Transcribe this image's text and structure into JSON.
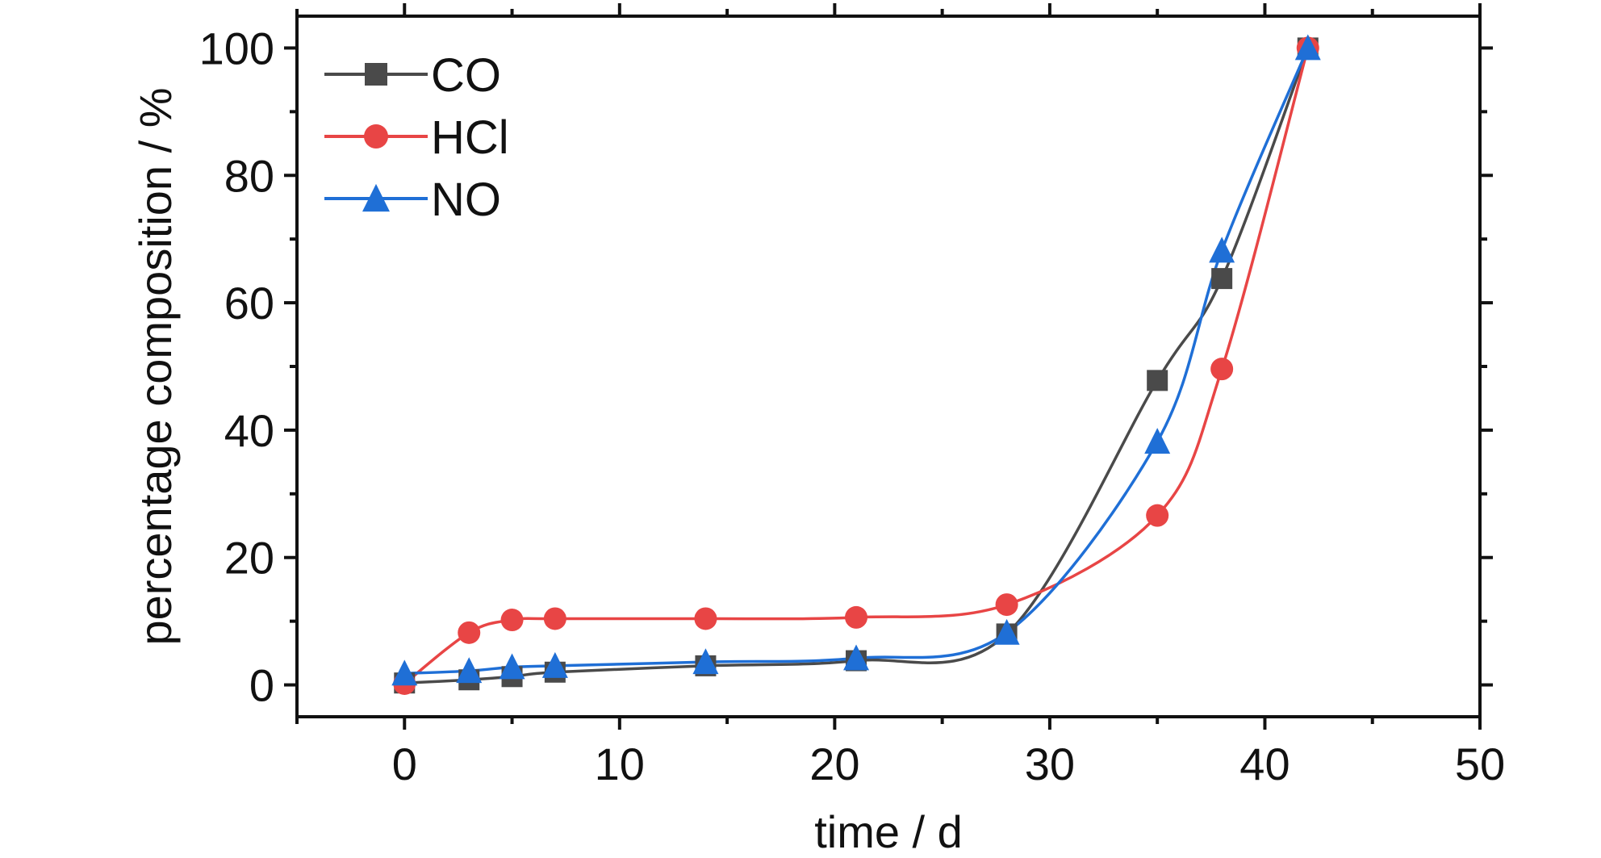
{
  "chart_data": {
    "type": "line",
    "xlabel": "time / d",
    "ylabel": "percentage composition / %",
    "xlim": [
      -5,
      50
    ],
    "ylim": [
      -5,
      105
    ],
    "xticks": [
      0,
      10,
      20,
      30,
      40,
      50
    ],
    "yticks": [
      0,
      20,
      40,
      60,
      80,
      100
    ],
    "grid": false,
    "legend_position": "top-left",
    "series": [
      {
        "name": "CO",
        "color": "#4a4a4a",
        "marker": "square",
        "points": [
          [
            0,
            0.3
          ],
          [
            3,
            0.8
          ],
          [
            5,
            1.3
          ],
          [
            7,
            2.0
          ],
          [
            14,
            3.0
          ],
          [
            21,
            3.8
          ],
          [
            28,
            8.0
          ],
          [
            35,
            47.8
          ],
          [
            38,
            63.8
          ],
          [
            42,
            100
          ]
        ]
      },
      {
        "name": "HCl",
        "color": "#e84545",
        "marker": "circle",
        "points": [
          [
            0,
            0.2
          ],
          [
            3,
            8.2
          ],
          [
            5,
            10.2
          ],
          [
            7,
            10.4
          ],
          [
            14,
            10.4
          ],
          [
            21,
            10.6
          ],
          [
            28,
            12.6
          ],
          [
            35,
            26.6
          ],
          [
            38,
            49.6
          ],
          [
            42,
            100
          ]
        ]
      },
      {
        "name": "NO",
        "color": "#1f6fd6",
        "marker": "triangle",
        "points": [
          [
            0,
            1.8
          ],
          [
            3,
            2.2
          ],
          [
            5,
            2.8
          ],
          [
            7,
            3.0
          ],
          [
            14,
            3.6
          ],
          [
            21,
            4.2
          ],
          [
            28,
            8.2
          ],
          [
            35,
            38.2
          ],
          [
            38,
            68.2
          ],
          [
            42,
            100
          ]
        ]
      }
    ]
  }
}
